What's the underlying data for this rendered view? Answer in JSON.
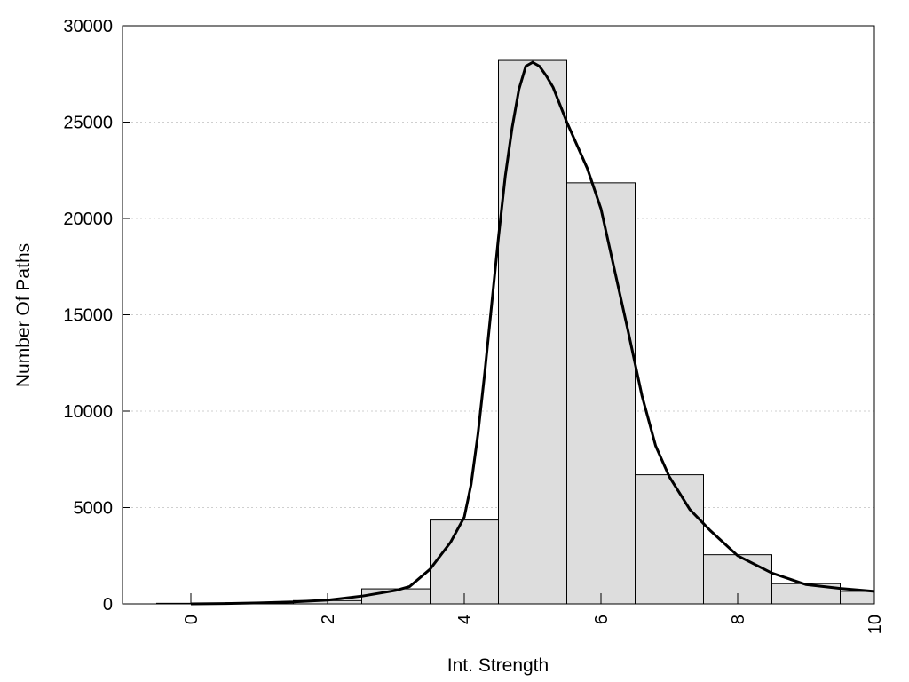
{
  "chart_data": {
    "type": "bar",
    "title": "",
    "xlabel": "Int. Strength",
    "ylabel": "Number Of Paths",
    "xlim": [
      -1,
      10
    ],
    "ylim": [
      0,
      30000
    ],
    "x_ticks": [
      0,
      2,
      4,
      6,
      8,
      10
    ],
    "y_ticks": [
      0,
      5000,
      10000,
      15000,
      20000,
      25000,
      30000
    ],
    "grid": "horizontal dotted",
    "bar_color": "#dddddd",
    "bins": [
      {
        "center": 0,
        "value": 30
      },
      {
        "center": 1,
        "value": 60
      },
      {
        "center": 2,
        "value": 170
      },
      {
        "center": 3,
        "value": 780
      },
      {
        "center": 4,
        "value": 4350
      },
      {
        "center": 5,
        "value": 28200
      },
      {
        "center": 6,
        "value": 21850
      },
      {
        "center": 7,
        "value": 6700
      },
      {
        "center": 8,
        "value": 2550
      },
      {
        "center": 9,
        "value": 1050
      },
      {
        "center": 10,
        "value": 650
      }
    ],
    "series": [
      {
        "type": "line",
        "x": [
          0,
          0.5,
          1,
          1.5,
          2,
          2.5,
          3,
          3.2,
          3.5,
          3.8,
          4,
          4.1,
          4.2,
          4.3,
          4.4,
          4.5,
          4.6,
          4.7,
          4.8,
          4.9,
          5,
          5.1,
          5.2,
          5.3,
          5.5,
          5.8,
          6,
          6.2,
          6.4,
          6.6,
          6.8,
          7,
          7.3,
          7.6,
          8,
          8.5,
          9,
          9.5,
          10
        ],
        "values": [
          0,
          20,
          50,
          100,
          200,
          400,
          700,
          900,
          1800,
          3200,
          4500,
          6200,
          8800,
          12000,
          15500,
          19000,
          22200,
          24700,
          26700,
          27900,
          28100,
          27900,
          27400,
          26800,
          25000,
          22600,
          20500,
          17300,
          14100,
          10800,
          8200,
          6600,
          4900,
          3800,
          2500,
          1600,
          1000,
          800,
          650
        ]
      }
    ]
  }
}
